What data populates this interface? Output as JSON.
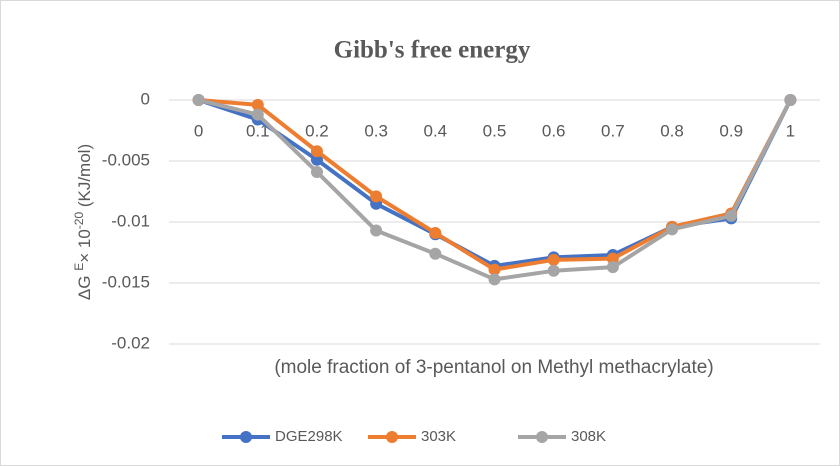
{
  "chart_data": {
    "type": "line",
    "title": "Gibb's free energy",
    "ylabel": [
      "ΔG ",
      "E",
      "× 10",
      "-20",
      " (KJ/mol)"
    ],
    "xlabel": "(mole fraction of 3-pentanol on Methyl methacrylate)",
    "categories": [
      "0",
      "0.1",
      "0.2",
      "0.3",
      "0.4",
      "0.5",
      "0.6",
      "0.7",
      "0.8",
      "0.9",
      "1"
    ],
    "series": [
      {
        "name": "DGE298K",
        "color": "#4472c4",
        "values": [
          0,
          -0.0016,
          -0.0049,
          -0.0085,
          -0.011,
          -0.0136,
          -0.0129,
          -0.0127,
          -0.0104,
          -0.0097,
          0
        ]
      },
      {
        "name": "303K",
        "color": "#ed7d31",
        "values": [
          0,
          -0.0004,
          -0.0042,
          -0.0079,
          -0.0109,
          -0.0139,
          -0.0131,
          -0.013,
          -0.0104,
          -0.0093,
          0
        ]
      },
      {
        "name": "308K",
        "color": "#a5a5a5",
        "values": [
          0,
          -0.0012,
          -0.0059,
          -0.0107,
          -0.0126,
          -0.0147,
          -0.014,
          -0.0137,
          -0.0106,
          -0.0095,
          0
        ]
      }
    ],
    "ylim": [
      -0.02,
      0
    ],
    "yticks": [
      0,
      -0.005,
      -0.01,
      -0.015,
      -0.02
    ],
    "grid": true,
    "legend": "bottom"
  }
}
